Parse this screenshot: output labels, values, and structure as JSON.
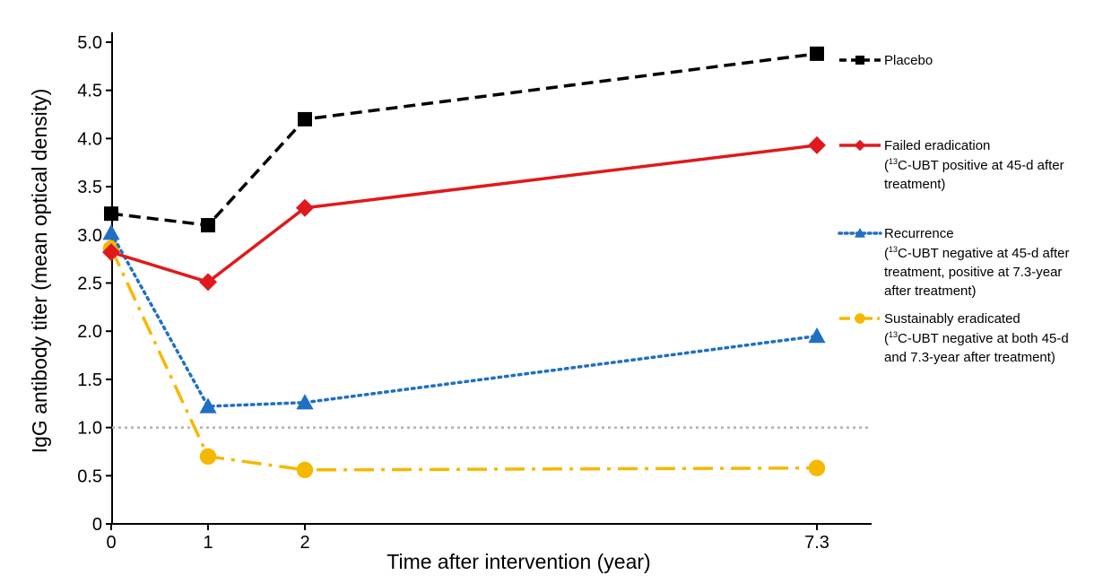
{
  "chart_data": {
    "type": "line",
    "title": "",
    "xlabel": "Time after intervention (year)",
    "ylabel": "IgG antibody titer (mean optical density)",
    "x": [
      0,
      1,
      2,
      7.3
    ],
    "x_tick_labels": [
      "0",
      "1",
      "2",
      "7.3"
    ],
    "ylim": [
      0,
      5.0
    ],
    "y_ticks": [
      0,
      0.5,
      1.0,
      1.5,
      2.0,
      2.5,
      3.0,
      3.5,
      4.0,
      4.5,
      5.0
    ],
    "y_tick_labels": [
      "0",
      "0.5",
      "1.0",
      "1.5",
      "2.0",
      "2.5",
      "3.0",
      "3.5",
      "4.0",
      "4.5",
      "5.0"
    ],
    "reference_line": {
      "y": 1.0,
      "style": "dotted",
      "color": "#b0b0b0"
    },
    "grid": false,
    "legend_placement": "right",
    "series": [
      {
        "name": "Placebo",
        "note_lines": [],
        "values": [
          3.22,
          3.1,
          4.2,
          4.88
        ],
        "color": "#000000",
        "line_style": "dashed",
        "marker": "square"
      },
      {
        "name": "Failed eradication",
        "note_lines": [
          {
            "pre": "(",
            "sup": "13",
            "post": "C-UBT positive at 45-d after"
          },
          {
            "pre": "treatment)",
            "sup": "",
            "post": ""
          }
        ],
        "values": [
          2.82,
          2.51,
          3.28,
          3.93
        ],
        "color": "#e0191c",
        "line_style": "solid",
        "marker": "diamond"
      },
      {
        "name": "Recurrence",
        "note_lines": [
          {
            "pre": "(",
            "sup": "13",
            "post": "C-UBT negative at 45-d after"
          },
          {
            "pre": "treatment, positive at 7.3-year",
            "sup": "",
            "post": ""
          },
          {
            "pre": "after treatment)",
            "sup": "",
            "post": ""
          }
        ],
        "values": [
          3.02,
          1.22,
          1.26,
          1.95
        ],
        "color": "#1f6fc5",
        "line_style": "dotted",
        "marker": "triangle"
      },
      {
        "name": "Sustainably eradicated",
        "note_lines": [
          {
            "pre": "(",
            "sup": "13",
            "post": "C-UBT negative at both 45-d"
          },
          {
            "pre": "and 7.3-year after treatment)",
            "sup": "",
            "post": ""
          }
        ],
        "values": [
          2.86,
          0.7,
          0.56,
          0.58
        ],
        "color": "#f5b800",
        "line_style": "dashdot",
        "marker": "circle"
      }
    ]
  }
}
